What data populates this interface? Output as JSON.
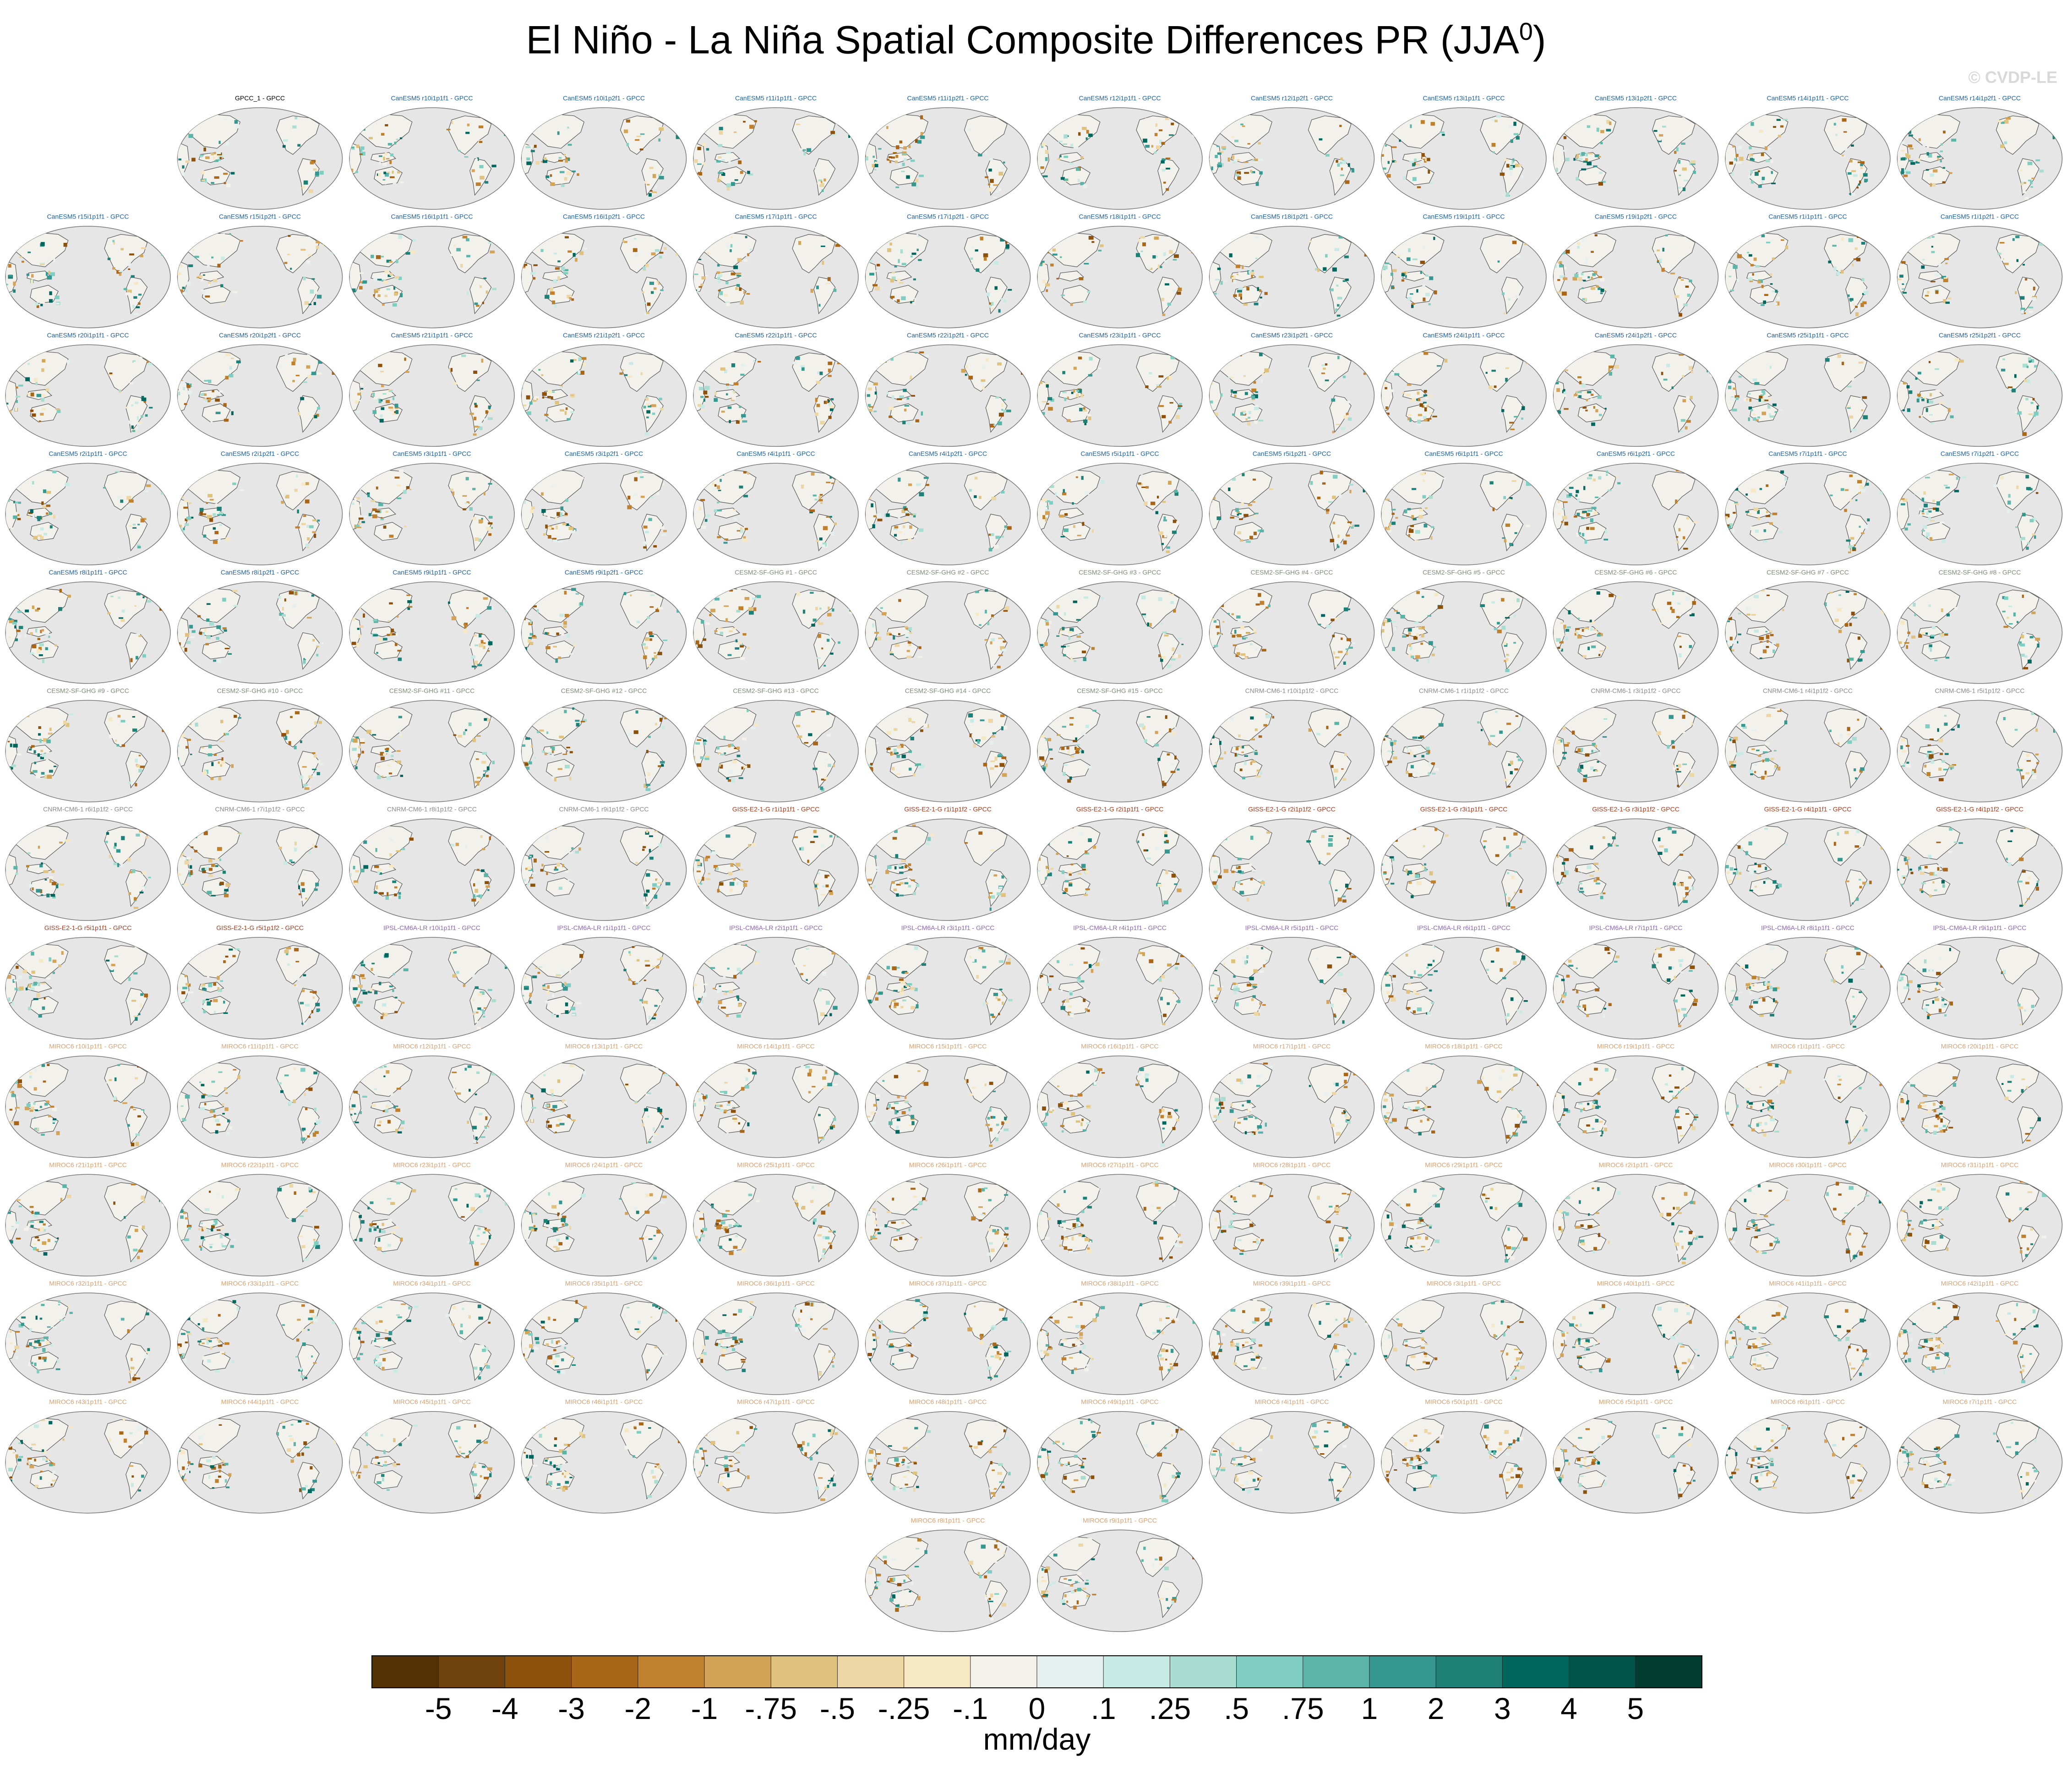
{
  "title": "El Niño - La Niña Spatial Composite Differences PR (JJA",
  "title_sup": "0",
  "title_close": ")",
  "watermark": "© CVDP-LE",
  "colors": {
    "ocean": "#e6e6e6",
    "land": "#f2f1ec",
    "coast": "#555555",
    "GPCC": "#000000",
    "CanESM5": "#1d5fa0",
    "CESM2-SF-GHG": "#7d8c77",
    "CNRM-CM6-1": "#8a8a8a",
    "GISS-E2-1-G": "#a63a1e",
    "IPSL-CM6A-LR": "#8d66b8",
    "MIROC6": "#d9a070"
  },
  "chart_data": {
    "type": "heatmap",
    "title": "El Niño - La Niña Spatial Composite Differences PR (JJA0)",
    "projection": "robinson-like ellipse, pacific-centered",
    "colorbar": {
      "label": "mm/day",
      "ticks": [
        "-5",
        "-4",
        "-3",
        "-2",
        "-1",
        "-.75",
        "-.5",
        "-.25",
        "-.1",
        "0",
        ".1",
        ".25",
        ".5",
        ".75",
        "1",
        "2",
        "3",
        "4",
        "5"
      ],
      "colors": [
        "#543005",
        "#6f410c",
        "#8c510a",
        "#a86619",
        "#bf812d",
        "#d3a458",
        "#dfc27d",
        "#ecd7a4",
        "#f6e8c3",
        "#f4f1ea",
        "#e6f0ee",
        "#c7eae5",
        "#a9ddd2",
        "#80cdc1",
        "#5ab4a7",
        "#35978f",
        "#1f8077",
        "#01665e",
        "#01544a",
        "#003c30"
      ]
    },
    "panels": [
      {
        "label": "GPCC_1 - GPCC",
        "group": "GPCC"
      },
      {
        "label": "CanESM5 r10i1p1f1 - GPCC",
        "group": "CanESM5"
      },
      {
        "label": "CanESM5 r10i1p2f1 - GPCC",
        "group": "CanESM5"
      },
      {
        "label": "CanESM5 r11i1p1f1 - GPCC",
        "group": "CanESM5"
      },
      {
        "label": "CanESM5 r11i1p2f1 - GPCC",
        "group": "CanESM5"
      },
      {
        "label": "CanESM5 r12i1p1f1 - GPCC",
        "group": "CanESM5"
      },
      {
        "label": "CanESM5 r12i1p2f1 - GPCC",
        "group": "CanESM5"
      },
      {
        "label": "CanESM5 r13i1p1f1 - GPCC",
        "group": "CanESM5"
      },
      {
        "label": "CanESM5 r13i1p2f1 - GPCC",
        "group": "CanESM5"
      },
      {
        "label": "CanESM5 r14i1p1f1 - GPCC",
        "group": "CanESM5"
      },
      {
        "label": "CanESM5 r14i1p2f1 - GPCC",
        "group": "CanESM5"
      },
      {
        "label": "CanESM5 r15i1p1f1 - GPCC",
        "group": "CanESM5"
      },
      {
        "label": "CanESM5 r15i1p2f1 - GPCC",
        "group": "CanESM5"
      },
      {
        "label": "CanESM5 r16i1p1f1 - GPCC",
        "group": "CanESM5"
      },
      {
        "label": "CanESM5 r16i1p2f1 - GPCC",
        "group": "CanESM5"
      },
      {
        "label": "CanESM5 r17i1p1f1 - GPCC",
        "group": "CanESM5"
      },
      {
        "label": "CanESM5 r17i1p2f1 - GPCC",
        "group": "CanESM5"
      },
      {
        "label": "CanESM5 r18i1p1f1 - GPCC",
        "group": "CanESM5"
      },
      {
        "label": "CanESM5 r18i1p2f1 - GPCC",
        "group": "CanESM5"
      },
      {
        "label": "CanESM5 r19i1p1f1 - GPCC",
        "group": "CanESM5"
      },
      {
        "label": "CanESM5 r19i1p2f1 - GPCC",
        "group": "CanESM5"
      },
      {
        "label": "CanESM5 r1i1p1f1 - GPCC",
        "group": "CanESM5"
      },
      {
        "label": "CanESM5 r1i1p2f1 - GPCC",
        "group": "CanESM5"
      },
      {
        "label": "CanESM5 r20i1p1f1 - GPCC",
        "group": "CanESM5"
      },
      {
        "label": "CanESM5 r20i1p2f1 - GPCC",
        "group": "CanESM5"
      },
      {
        "label": "CanESM5 r21i1p1f1 - GPCC",
        "group": "CanESM5"
      },
      {
        "label": "CanESM5 r21i1p2f1 - GPCC",
        "group": "CanESM5"
      },
      {
        "label": "CanESM5 r22i1p1f1 - GPCC",
        "group": "CanESM5"
      },
      {
        "label": "CanESM5 r22i1p2f1 - GPCC",
        "group": "CanESM5"
      },
      {
        "label": "CanESM5 r23i1p1f1 - GPCC",
        "group": "CanESM5"
      },
      {
        "label": "CanESM5 r23i1p2f1 - GPCC",
        "group": "CanESM5"
      },
      {
        "label": "CanESM5 r24i1p1f1 - GPCC",
        "group": "CanESM5"
      },
      {
        "label": "CanESM5 r24i1p2f1 - GPCC",
        "group": "CanESM5"
      },
      {
        "label": "CanESM5 r25i1p1f1 - GPCC",
        "group": "CanESM5"
      },
      {
        "label": "CanESM5 r25i1p2f1 - GPCC",
        "group": "CanESM5"
      },
      {
        "label": "CanESM5 r2i1p1f1 - GPCC",
        "group": "CanESM5"
      },
      {
        "label": "CanESM5 r2i1p2f1 - GPCC",
        "group": "CanESM5"
      },
      {
        "label": "CanESM5 r3i1p1f1 - GPCC",
        "group": "CanESM5"
      },
      {
        "label": "CanESM5 r3i1p2f1 - GPCC",
        "group": "CanESM5"
      },
      {
        "label": "CanESM5 r4i1p1f1 - GPCC",
        "group": "CanESM5"
      },
      {
        "label": "CanESM5 r4i1p2f1 - GPCC",
        "group": "CanESM5"
      },
      {
        "label": "CanESM5 r5i1p1f1 - GPCC",
        "group": "CanESM5"
      },
      {
        "label": "CanESM5 r5i1p2f1 - GPCC",
        "group": "CanESM5"
      },
      {
        "label": "CanESM5 r6i1p1f1 - GPCC",
        "group": "CanESM5"
      },
      {
        "label": "CanESM5 r6i1p2f1 - GPCC",
        "group": "CanESM5"
      },
      {
        "label": "CanESM5 r7i1p1f1 - GPCC",
        "group": "CanESM5"
      },
      {
        "label": "CanESM5 r7i1p2f1 - GPCC",
        "group": "CanESM5"
      },
      {
        "label": "CanESM5 r8i1p1f1 - GPCC",
        "group": "CanESM5"
      },
      {
        "label": "CanESM5 r8i1p2f1 - GPCC",
        "group": "CanESM5"
      },
      {
        "label": "CanESM5 r9i1p1f1 - GPCC",
        "group": "CanESM5"
      },
      {
        "label": "CanESM5 r9i1p2f1 - GPCC",
        "group": "CanESM5"
      },
      {
        "label": "CESM2-SF-GHG #1 - GPCC",
        "group": "CESM2-SF-GHG"
      },
      {
        "label": "CESM2-SF-GHG #2 - GPCC",
        "group": "CESM2-SF-GHG"
      },
      {
        "label": "CESM2-SF-GHG #3 - GPCC",
        "group": "CESM2-SF-GHG"
      },
      {
        "label": "CESM2-SF-GHG #4 - GPCC",
        "group": "CESM2-SF-GHG"
      },
      {
        "label": "CESM2-SF-GHG #5 - GPCC",
        "group": "CESM2-SF-GHG"
      },
      {
        "label": "CESM2-SF-GHG #6 - GPCC",
        "group": "CESM2-SF-GHG"
      },
      {
        "label": "CESM2-SF-GHG #7 - GPCC",
        "group": "CESM2-SF-GHG"
      },
      {
        "label": "CESM2-SF-GHG #8 - GPCC",
        "group": "CESM2-SF-GHG"
      },
      {
        "label": "CESM2-SF-GHG #9 - GPCC",
        "group": "CESM2-SF-GHG"
      },
      {
        "label": "CESM2-SF-GHG #10 - GPCC",
        "group": "CESM2-SF-GHG"
      },
      {
        "label": "CESM2-SF-GHG #11 - GPCC",
        "group": "CESM2-SF-GHG"
      },
      {
        "label": "CESM2-SF-GHG #12 - GPCC",
        "group": "CESM2-SF-GHG"
      },
      {
        "label": "CESM2-SF-GHG #13 - GPCC",
        "group": "CESM2-SF-GHG"
      },
      {
        "label": "CESM2-SF-GHG #14 - GPCC",
        "group": "CESM2-SF-GHG"
      },
      {
        "label": "CESM2-SF-GHG #15 - GPCC",
        "group": "CESM2-SF-GHG"
      },
      {
        "label": "CNRM-CM6-1 r10i1p1f2 - GPCC",
        "group": "CNRM-CM6-1"
      },
      {
        "label": "CNRM-CM6-1 r1i1p1f2 - GPCC",
        "group": "CNRM-CM6-1"
      },
      {
        "label": "CNRM-CM6-1 r3i1p1f2 - GPCC",
        "group": "CNRM-CM6-1"
      },
      {
        "label": "CNRM-CM6-1 r4i1p1f2 - GPCC",
        "group": "CNRM-CM6-1"
      },
      {
        "label": "CNRM-CM6-1 r5i1p1f2 - GPCC",
        "group": "CNRM-CM6-1"
      },
      {
        "label": "CNRM-CM6-1 r6i1p1f2 - GPCC",
        "group": "CNRM-CM6-1"
      },
      {
        "label": "CNRM-CM6-1 r7i1p1f2 - GPCC",
        "group": "CNRM-CM6-1"
      },
      {
        "label": "CNRM-CM6-1 r8i1p1f2 - GPCC",
        "group": "CNRM-CM6-1"
      },
      {
        "label": "CNRM-CM6-1 r9i1p1f2 - GPCC",
        "group": "CNRM-CM6-1"
      },
      {
        "label": "GISS-E2-1-G r1i1p1f1 - GPCC",
        "group": "GISS-E2-1-G"
      },
      {
        "label": "GISS-E2-1-G r1i1p1f2 - GPCC",
        "group": "GISS-E2-1-G"
      },
      {
        "label": "GISS-E2-1-G r2i1p1f1 - GPCC",
        "group": "GISS-E2-1-G"
      },
      {
        "label": "GISS-E2-1-G r2i1p1f2 - GPCC",
        "group": "GISS-E2-1-G"
      },
      {
        "label": "GISS-E2-1-G r3i1p1f1 - GPCC",
        "group": "GISS-E2-1-G"
      },
      {
        "label": "GISS-E2-1-G r3i1p1f2 - GPCC",
        "group": "GISS-E2-1-G"
      },
      {
        "label": "GISS-E2-1-G r4i1p1f1 - GPCC",
        "group": "GISS-E2-1-G"
      },
      {
        "label": "GISS-E2-1-G r4i1p1f2 - GPCC",
        "group": "GISS-E2-1-G"
      },
      {
        "label": "GISS-E2-1-G r5i1p1f1 - GPCC",
        "group": "GISS-E2-1-G"
      },
      {
        "label": "GISS-E2-1-G r5i1p1f2 - GPCC",
        "group": "GISS-E2-1-G"
      },
      {
        "label": "IPSL-CM6A-LR r10i1p1f1 - GPCC",
        "group": "IPSL-CM6A-LR"
      },
      {
        "label": "IPSL-CM6A-LR r1i1p1f1 - GPCC",
        "group": "IPSL-CM6A-LR"
      },
      {
        "label": "IPSL-CM6A-LR r2i1p1f1 - GPCC",
        "group": "IPSL-CM6A-LR"
      },
      {
        "label": "IPSL-CM6A-LR r3i1p1f1 - GPCC",
        "group": "IPSL-CM6A-LR"
      },
      {
        "label": "IPSL-CM6A-LR r4i1p1f1 - GPCC",
        "group": "IPSL-CM6A-LR"
      },
      {
        "label": "IPSL-CM6A-LR r5i1p1f1 - GPCC",
        "group": "IPSL-CM6A-LR"
      },
      {
        "label": "IPSL-CM6A-LR r6i1p1f1 - GPCC",
        "group": "IPSL-CM6A-LR"
      },
      {
        "label": "IPSL-CM6A-LR r7i1p1f1 - GPCC",
        "group": "IPSL-CM6A-LR"
      },
      {
        "label": "IPSL-CM6A-LR r8i1p1f1 - GPCC",
        "group": "IPSL-CM6A-LR"
      },
      {
        "label": "IPSL-CM6A-LR r9i1p1f1 - GPCC",
        "group": "IPSL-CM6A-LR"
      },
      {
        "label": "MIROC6 r10i1p1f1 - GPCC",
        "group": "MIROC6"
      },
      {
        "label": "MIROC6 r11i1p1f1 - GPCC",
        "group": "MIROC6"
      },
      {
        "label": "MIROC6 r12i1p1f1 - GPCC",
        "group": "MIROC6"
      },
      {
        "label": "MIROC6 r13i1p1f1 - GPCC",
        "group": "MIROC6"
      },
      {
        "label": "MIROC6 r14i1p1f1 - GPCC",
        "group": "MIROC6"
      },
      {
        "label": "MIROC6 r15i1p1f1 - GPCC",
        "group": "MIROC6"
      },
      {
        "label": "MIROC6 r16i1p1f1 - GPCC",
        "group": "MIROC6"
      },
      {
        "label": "MIROC6 r17i1p1f1 - GPCC",
        "group": "MIROC6"
      },
      {
        "label": "MIROC6 r18i1p1f1 - GPCC",
        "group": "MIROC6"
      },
      {
        "label": "MIROC6 r19i1p1f1 - GPCC",
        "group": "MIROC6"
      },
      {
        "label": "MIROC6 r1i1p1f1 - GPCC",
        "group": "MIROC6"
      },
      {
        "label": "MIROC6 r20i1p1f1 - GPCC",
        "group": "MIROC6"
      },
      {
        "label": "MIROC6 r21i1p1f1 - GPCC",
        "group": "MIROC6"
      },
      {
        "label": "MIROC6 r22i1p1f1 - GPCC",
        "group": "MIROC6"
      },
      {
        "label": "MIROC6 r23i1p1f1 - GPCC",
        "group": "MIROC6"
      },
      {
        "label": "MIROC6 r24i1p1f1 - GPCC",
        "group": "MIROC6"
      },
      {
        "label": "MIROC6 r25i1p1f1 - GPCC",
        "group": "MIROC6"
      },
      {
        "label": "MIROC6 r26i1p1f1 - GPCC",
        "group": "MIROC6"
      },
      {
        "label": "MIROC6 r27i1p1f1 - GPCC",
        "group": "MIROC6"
      },
      {
        "label": "MIROC6 r28i1p1f1 - GPCC",
        "group": "MIROC6"
      },
      {
        "label": "MIROC6 r29i1p1f1 - GPCC",
        "group": "MIROC6"
      },
      {
        "label": "MIROC6 r2i1p1f1 - GPCC",
        "group": "MIROC6"
      },
      {
        "label": "MIROC6 r30i1p1f1 - GPCC",
        "group": "MIROC6"
      },
      {
        "label": "MIROC6 r31i1p1f1 - GPCC",
        "group": "MIROC6"
      },
      {
        "label": "MIROC6 r32i1p1f1 - GPCC",
        "group": "MIROC6"
      },
      {
        "label": "MIROC6 r33i1p1f1 - GPCC",
        "group": "MIROC6"
      },
      {
        "label": "MIROC6 r34i1p1f1 - GPCC",
        "group": "MIROC6"
      },
      {
        "label": "MIROC6 r35i1p1f1 - GPCC",
        "group": "MIROC6"
      },
      {
        "label": "MIROC6 r36i1p1f1 - GPCC",
        "group": "MIROC6"
      },
      {
        "label": "MIROC6 r37i1p1f1 - GPCC",
        "group": "MIROC6"
      },
      {
        "label": "MIROC6 r38i1p1f1 - GPCC",
        "group": "MIROC6"
      },
      {
        "label": "MIROC6 r39i1p1f1 - GPCC",
        "group": "MIROC6"
      },
      {
        "label": "MIROC6 r3i1p1f1 - GPCC",
        "group": "MIROC6"
      },
      {
        "label": "MIROC6 r40i1p1f1 - GPCC",
        "group": "MIROC6"
      },
      {
        "label": "MIROC6 r41i1p1f1 - GPCC",
        "group": "MIROC6"
      },
      {
        "label": "MIROC6 r42i1p1f1 - GPCC",
        "group": "MIROC6"
      },
      {
        "label": "MIROC6 r43i1p1f1 - GPCC",
        "group": "MIROC6"
      },
      {
        "label": "MIROC6 r44i1p1f1 - GPCC",
        "group": "MIROC6"
      },
      {
        "label": "MIROC6 r45i1p1f1 - GPCC",
        "group": "MIROC6"
      },
      {
        "label": "MIROC6 r46i1p1f1 - GPCC",
        "group": "MIROC6"
      },
      {
        "label": "MIROC6 r47i1p1f1 - GPCC",
        "group": "MIROC6"
      },
      {
        "label": "MIROC6 r48i1p1f1 - GPCC",
        "group": "MIROC6"
      },
      {
        "label": "MIROC6 r49i1p1f1 - GPCC",
        "group": "MIROC6"
      },
      {
        "label": "MIROC6 r4i1p1f1 - GPCC",
        "group": "MIROC6"
      },
      {
        "label": "MIROC6 r50i1p1f1 - GPCC",
        "group": "MIROC6"
      },
      {
        "label": "MIROC6 r5i1p1f1 - GPCC",
        "group": "MIROC6"
      },
      {
        "label": "MIROC6 r6i1p1f1 - GPCC",
        "group": "MIROC6"
      },
      {
        "label": "MIROC6 r7i1p1f1 - GPCC",
        "group": "MIROC6"
      },
      {
        "label": "MIROC6 r8i1p1f1 - GPCC",
        "group": "MIROC6"
      },
      {
        "label": "MIROC6 r9i1p1f1 - GPCC",
        "group": "MIROC6"
      }
    ]
  }
}
